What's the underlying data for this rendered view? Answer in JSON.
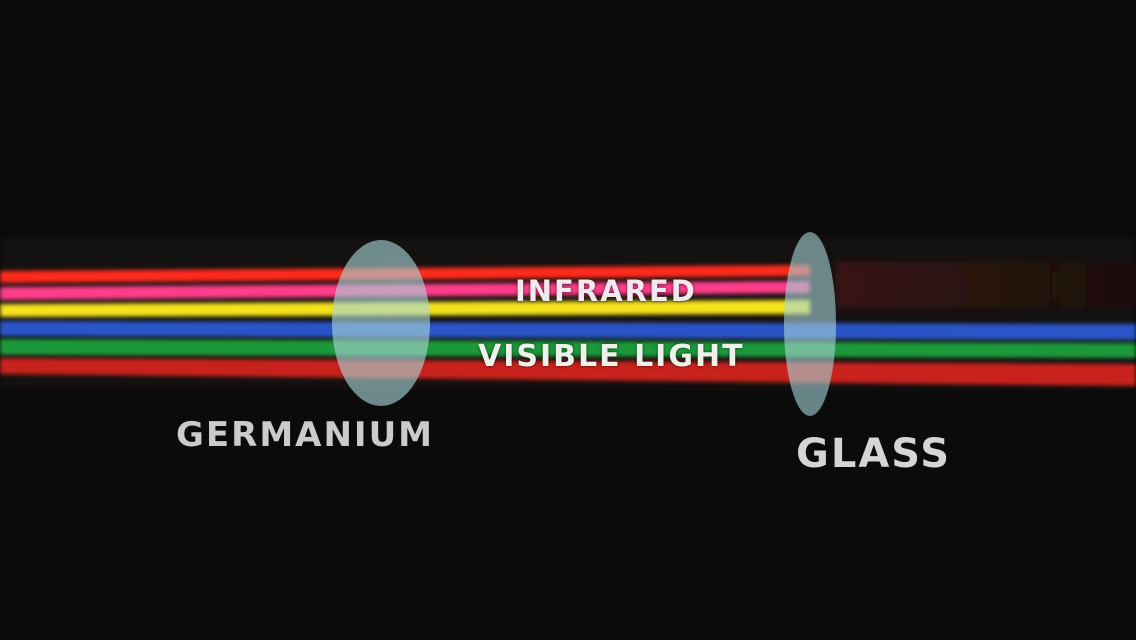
{
  "labels": {
    "infrared": "INFRARED",
    "visible_light": "VISIBLE LIGHT",
    "germanium": "GERMANIUM",
    "glass": "GLASS"
  },
  "colors": {
    "background": "#0b0b0b",
    "beam_red_top": "#ff2a1a",
    "beam_pink": "#ff3d8a",
    "beam_yellow": "#f4e21c",
    "beam_blue": "#2a55c8",
    "beam_green": "#1c9a3a",
    "beam_red_bottom": "#c9241a",
    "lens": "#a9d6d8"
  },
  "beams": [
    {
      "name": "red-infrared",
      "group": "infrared",
      "passes_glass": false
    },
    {
      "name": "pink-infrared",
      "group": "infrared",
      "passes_glass": false
    },
    {
      "name": "yellow-infrared",
      "group": "infrared",
      "passes_glass": false
    },
    {
      "name": "blue-visible",
      "group": "visible light",
      "passes_glass": true
    },
    {
      "name": "green-visible",
      "group": "visible light",
      "passes_glass": true
    },
    {
      "name": "red-visible",
      "group": "visible light",
      "passes_glass": true
    }
  ]
}
